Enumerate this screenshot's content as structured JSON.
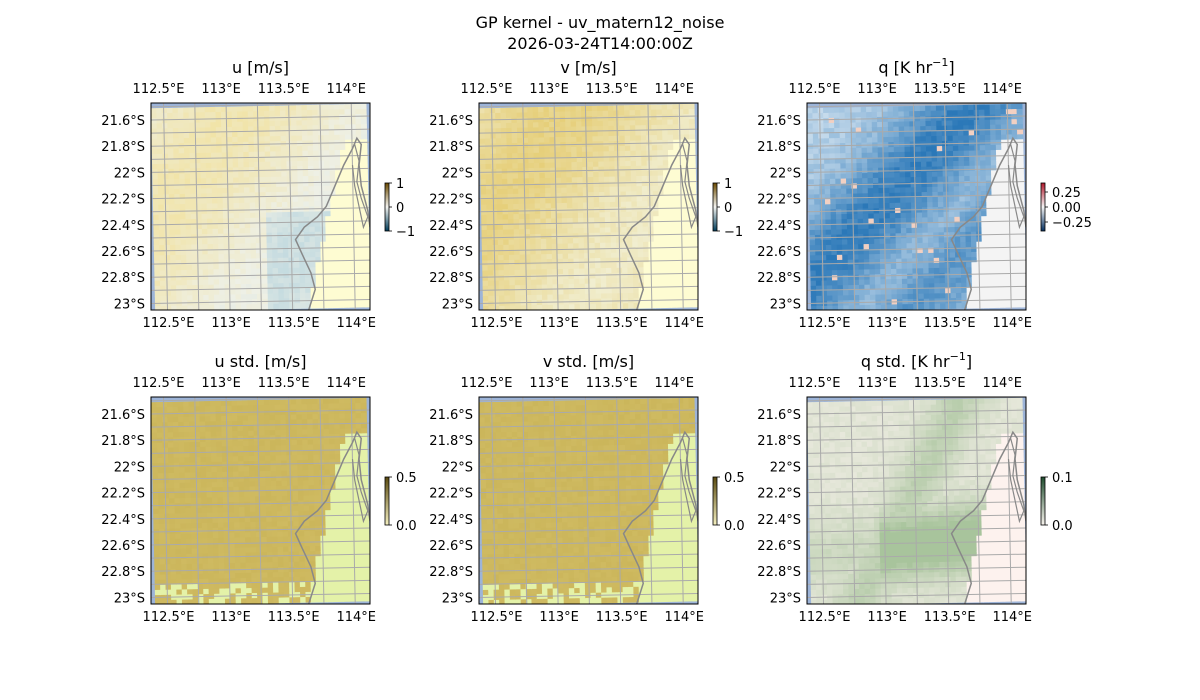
{
  "figure": {
    "title_line1": "GP kernel - uv_matern12_noise",
    "title_line2": "2026-03-24T14:00:00Z"
  },
  "axes": {
    "lon_ticks": [
      "112.5°E",
      "113°E",
      "113.5°E",
      "114°E"
    ],
    "lat_ticks": [
      "21.6°S",
      "21.8°S",
      "22°S",
      "22.2°S",
      "22.4°S",
      "22.6°S",
      "22.8°S",
      "23°S"
    ],
    "lon_values": [
      112.5,
      113.0,
      113.5,
      114.0
    ],
    "lat_values": [
      -21.6,
      -21.8,
      -22.0,
      -22.2,
      -22.4,
      -22.6,
      -22.8,
      -23.0
    ],
    "lon_range": [
      112.4,
      114.15
    ],
    "lat_range": [
      -23.05,
      -21.47
    ]
  },
  "panels": [
    {
      "id": "u",
      "title": "u [m/s]",
      "colorbar_ticks": [
        "1",
        "0",
        "−1"
      ],
      "colormap": "diverging-blue-white-yellow",
      "colors": {
        "low": "#7fb8d6",
        "mid": "#eef0e6",
        "high": "#f2e19a"
      }
    },
    {
      "id": "v",
      "title": "v [m/s]",
      "colorbar_ticks": [
        "1",
        "0",
        "−1"
      ],
      "colormap": "diverging-blue-white-yellow",
      "colors": {
        "low": "#7fb8d6",
        "mid": "#f2f1d8",
        "high": "#e6cf7a"
      }
    },
    {
      "id": "q",
      "title": "q [K hr",
      "title_sup": "−1",
      "title_end": "]",
      "colorbar_ticks": [
        "0.25",
        "0.00",
        "−0.25"
      ],
      "colormap": "diverging-blue-white-red",
      "colors": {
        "low": "#2b78b8",
        "mid": "#f4f4f4",
        "high": "#f0b8a0"
      }
    },
    {
      "id": "u_std",
      "title": "u std. [m/s]",
      "colorbar_ticks": [
        "0.5",
        "0.0"
      ],
      "colormap": "sequential-yellow-brown",
      "colors": {
        "low": "#e4f2a8",
        "high": "#c8b256"
      }
    },
    {
      "id": "v_std",
      "title": "v std. [m/s]",
      "colorbar_ticks": [
        "0.5",
        "0.0"
      ],
      "colormap": "sequential-yellow-brown",
      "colors": {
        "low": "#e4f2a8",
        "high": "#c8b256"
      }
    },
    {
      "id": "q_std",
      "title": "q std. [K hr",
      "title_sup": "−1",
      "title_end": "]",
      "colorbar_ticks": [
        "0.1",
        "0.0"
      ],
      "colormap": "sequential-white-green",
      "colors": {
        "low": "#f2eee6",
        "high": "#a8c49c"
      }
    }
  ],
  "style": {
    "ocean": "#9db4d8",
    "gridline": "#aaaaaa",
    "coastline": "#888888"
  }
}
